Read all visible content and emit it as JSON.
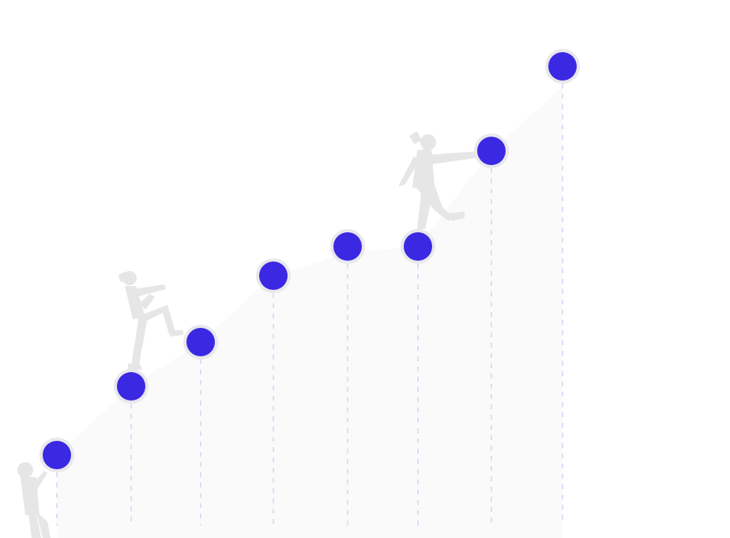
{
  "colors": {
    "background": "#ffffff",
    "area_fill": "#fafafb",
    "dot_fill": "#3b28e3",
    "dot_halo": "#e8e8ec",
    "guide_line": "#d6d2f7",
    "climber": "#e6e6e6"
  },
  "diagram": {
    "type": "milestone-staircase",
    "step_count": 8,
    "figures": [
      "climber-bottom",
      "climber-middle",
      "climber-top"
    ]
  }
}
